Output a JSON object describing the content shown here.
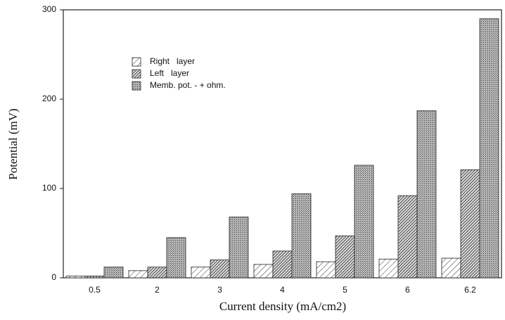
{
  "chart_data": {
    "type": "bar",
    "x_label": "Current density  (mA/cm2)",
    "y_label": "Potential  (mV)",
    "categories": [
      "0.5",
      "2",
      "3",
      "4",
      "5",
      "6",
      "6.2"
    ],
    "series": [
      {
        "name": "Right   layer",
        "color": "#ffffff",
        "pattern": "hatch-light",
        "values": [
          2,
          8,
          12,
          15,
          18,
          21,
          22
        ]
      },
      {
        "name": "Left   layer",
        "color": "#555555",
        "pattern": "hatch-dense",
        "values": [
          2,
          12,
          20,
          30,
          47,
          92,
          121
        ]
      },
      {
        "name": "Memb. pot. - + ohm.",
        "color": "#9a9a9a",
        "pattern": "stipple",
        "values": [
          12,
          45,
          68,
          94,
          126,
          187,
          290
        ]
      }
    ],
    "ylim": [
      0,
      300
    ],
    "yticks": [
      0,
      100,
      200,
      300
    ],
    "grid": false
  }
}
